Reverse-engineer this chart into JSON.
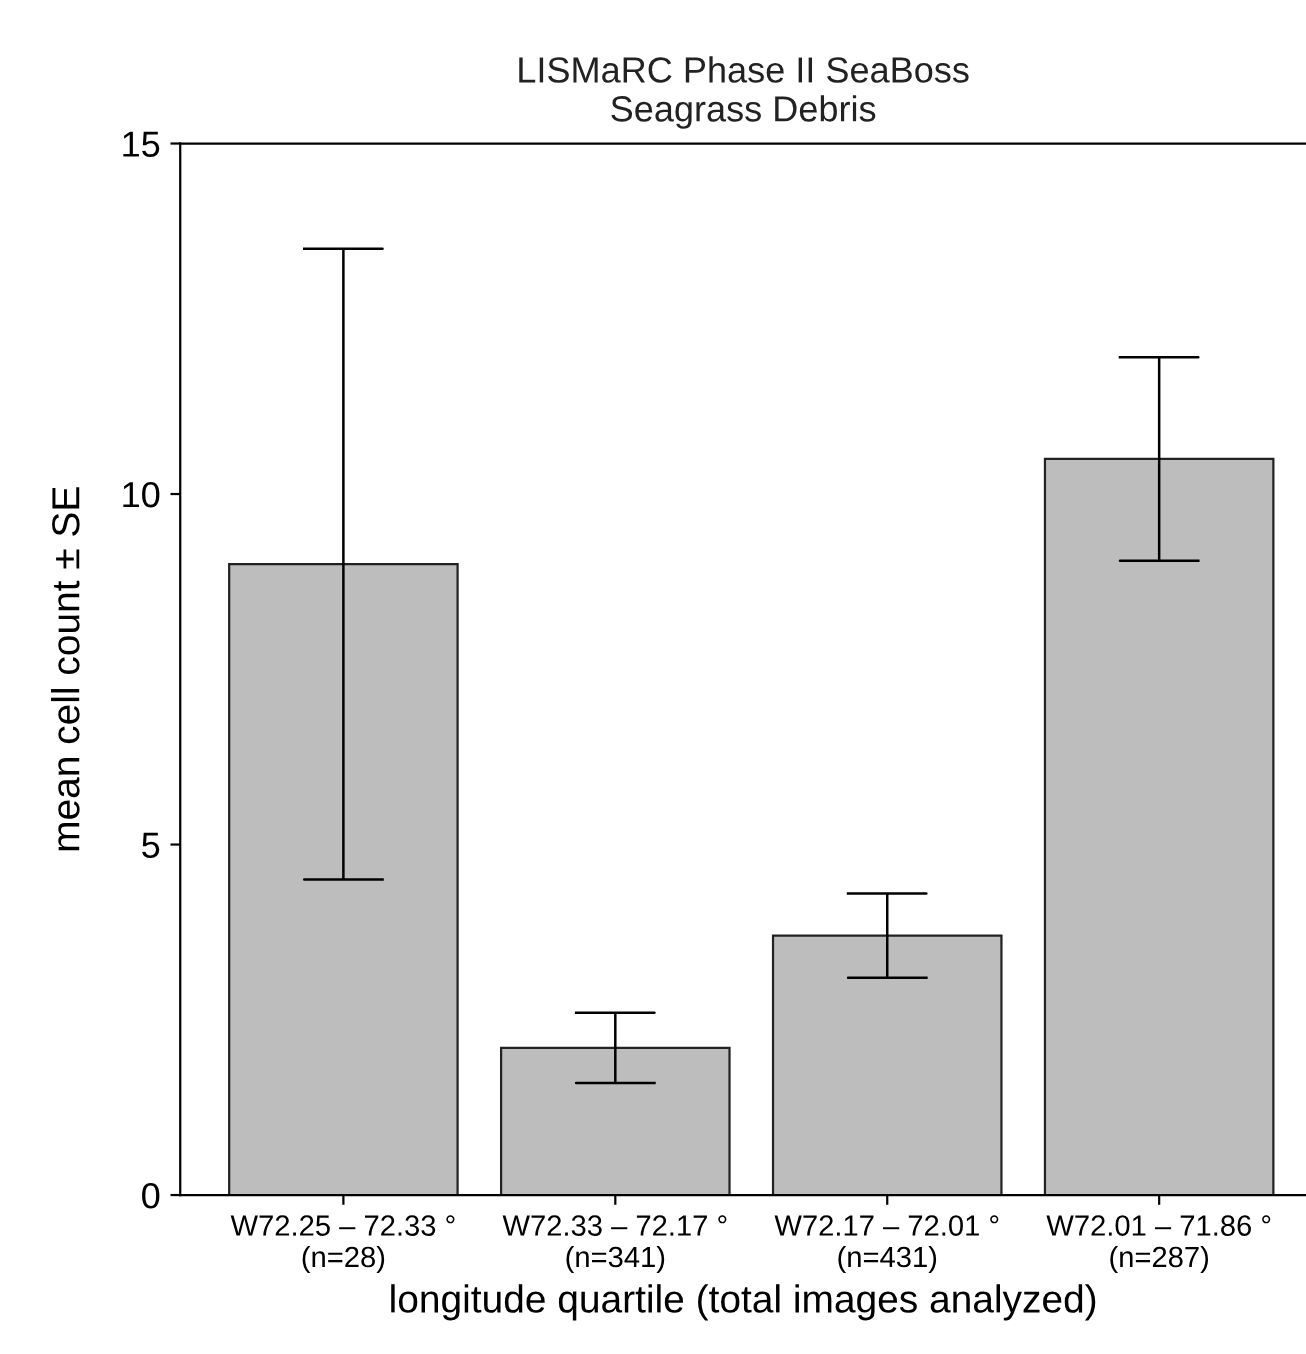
{
  "chart_data": {
    "type": "bar",
    "title": "LISMaRC Phase II SeaBoss\nSeagrass Debris",
    "xlabel": "longitude quartile (total images analyzed)",
    "ylabel": "mean cell count ± SE",
    "categories": [
      "W72.25 – 72.33 °\n(n=28)",
      "W72.33 – 72.17 °\n(n=341)",
      "W72.17 – 72.01 °\n(n=431)",
      "W72.01 – 71.86 °\n(n=287)"
    ],
    "values": [
      9.0,
      2.1,
      3.7,
      10.5
    ],
    "errors": [
      4.5,
      0.5,
      0.6,
      1.45
    ],
    "color": "#bdbdbd",
    "ylim": [
      0,
      15
    ],
    "yticks": [
      0,
      5,
      10,
      15
    ],
    "grid": false,
    "legend": false
  }
}
